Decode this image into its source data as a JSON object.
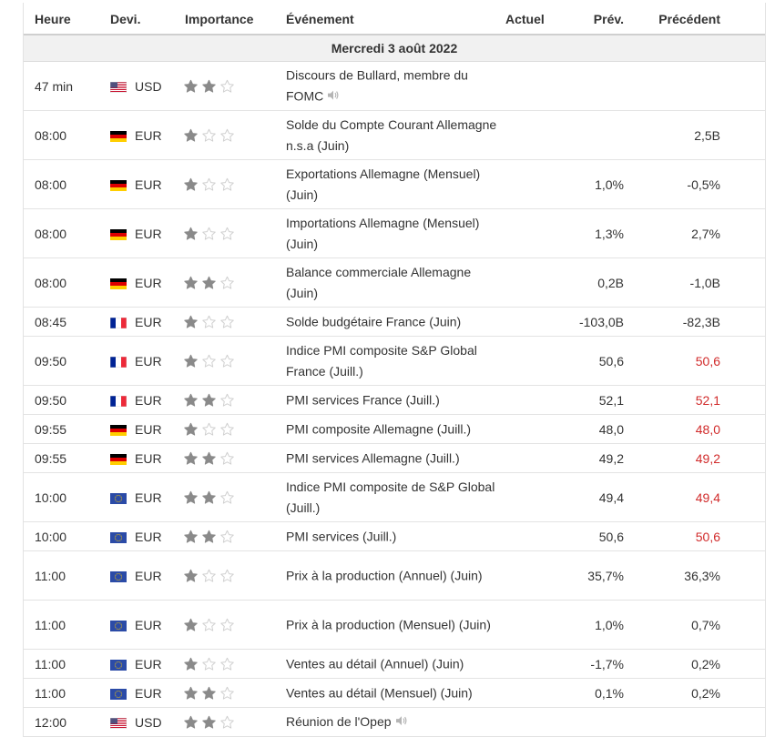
{
  "header": {
    "time": "Heure",
    "currency": "Devi.",
    "importance": "Importance",
    "event": "Événement",
    "actual": "Actuel",
    "forecast": "Prév.",
    "previous": "Précédent"
  },
  "date_label": "Mercredi 3 août 2022",
  "colors": {
    "negative": "#d12b2b",
    "star_filled": "#8a8a8a",
    "star_empty": "#cfcfcf"
  },
  "rows": [
    {
      "time": "47 min",
      "flag": "us",
      "currency": "USD",
      "importance": 2,
      "event": "Discours de Bullard, membre du FOMC",
      "speaker_icon": true,
      "actual": "",
      "forecast": "",
      "previous": "",
      "previous_red": false,
      "lines": 2
    },
    {
      "time": "08:00",
      "flag": "de",
      "currency": "EUR",
      "importance": 1,
      "event": "Solde du Compte Courant Allemagne n.s.a (Juin)",
      "speaker_icon": false,
      "actual": "",
      "forecast": "",
      "previous": "2,5B",
      "previous_red": false,
      "lines": 2
    },
    {
      "time": "08:00",
      "flag": "de",
      "currency": "EUR",
      "importance": 1,
      "event": "Exportations Allemagne (Mensuel) (Juin)",
      "speaker_icon": false,
      "actual": "",
      "forecast": "1,0%",
      "previous": "-0,5%",
      "previous_red": false,
      "lines": 2
    },
    {
      "time": "08:00",
      "flag": "de",
      "currency": "EUR",
      "importance": 1,
      "event": "Importations Allemagne (Mensuel) (Juin)",
      "speaker_icon": false,
      "actual": "",
      "forecast": "1,3%",
      "previous": "2,7%",
      "previous_red": false,
      "lines": 2
    },
    {
      "time": "08:00",
      "flag": "de",
      "currency": "EUR",
      "importance": 2,
      "event": "Balance commerciale Allemagne (Juin)",
      "speaker_icon": false,
      "actual": "",
      "forecast": "0,2B",
      "previous": "-1,0B",
      "previous_red": false,
      "lines": 2
    },
    {
      "time": "08:45",
      "flag": "fr",
      "currency": "EUR",
      "importance": 1,
      "event": "Solde budgétaire France (Juin)",
      "speaker_icon": false,
      "actual": "",
      "forecast": "-103,0B",
      "previous": "-82,3B",
      "previous_red": false,
      "lines": 1
    },
    {
      "time": "09:50",
      "flag": "fr",
      "currency": "EUR",
      "importance": 1,
      "event": "Indice PMI composite S&P Global France (Juill.)",
      "speaker_icon": false,
      "actual": "",
      "forecast": "50,6",
      "previous": "50,6",
      "previous_red": true,
      "lines": 2
    },
    {
      "time": "09:50",
      "flag": "fr",
      "currency": "EUR",
      "importance": 2,
      "event": "PMI services France (Juill.)",
      "speaker_icon": false,
      "actual": "",
      "forecast": "52,1",
      "previous": "52,1",
      "previous_red": true,
      "lines": 1
    },
    {
      "time": "09:55",
      "flag": "de",
      "currency": "EUR",
      "importance": 1,
      "event": "PMI composite Allemagne (Juill.)",
      "speaker_icon": false,
      "actual": "",
      "forecast": "48,0",
      "previous": "48,0",
      "previous_red": true,
      "lines": 1
    },
    {
      "time": "09:55",
      "flag": "de",
      "currency": "EUR",
      "importance": 2,
      "event": "PMI services Allemagne (Juill.)",
      "speaker_icon": false,
      "actual": "",
      "forecast": "49,2",
      "previous": "49,2",
      "previous_red": true,
      "lines": 1
    },
    {
      "time": "10:00",
      "flag": "eu",
      "currency": "EUR",
      "importance": 2,
      "event": "Indice PMI composite de S&P Global (Juill.)",
      "speaker_icon": false,
      "actual": "",
      "forecast": "49,4",
      "previous": "49,4",
      "previous_red": true,
      "lines": 2
    },
    {
      "time": "10:00",
      "flag": "eu",
      "currency": "EUR",
      "importance": 2,
      "event": "PMI services (Juill.)",
      "speaker_icon": false,
      "actual": "",
      "forecast": "50,6",
      "previous": "50,6",
      "previous_red": true,
      "lines": 1
    },
    {
      "time": "11:00",
      "flag": "eu",
      "currency": "EUR",
      "importance": 1,
      "event": "Prix à la production (Annuel) (Juin)",
      "speaker_icon": false,
      "actual": "",
      "forecast": "35,7%",
      "previous": "36,3%",
      "previous_red": false,
      "lines": 2
    },
    {
      "time": "11:00",
      "flag": "eu",
      "currency": "EUR",
      "importance": 1,
      "event": "Prix à la production (Mensuel) (Juin)",
      "speaker_icon": false,
      "actual": "",
      "forecast": "1,0%",
      "previous": "0,7%",
      "previous_red": false,
      "lines": 2
    },
    {
      "time": "11:00",
      "flag": "eu",
      "currency": "EUR",
      "importance": 1,
      "event": "Ventes au détail (Annuel) (Juin)",
      "speaker_icon": false,
      "actual": "",
      "forecast": "-1,7%",
      "previous": "0,2%",
      "previous_red": false,
      "lines": 1
    },
    {
      "time": "11:00",
      "flag": "eu",
      "currency": "EUR",
      "importance": 2,
      "event": "Ventes au détail (Mensuel) (Juin)",
      "speaker_icon": false,
      "actual": "",
      "forecast": "0,1%",
      "previous": "0,2%",
      "previous_red": false,
      "lines": 1
    },
    {
      "time": "12:00",
      "flag": "us",
      "currency": "USD",
      "importance": 2,
      "event": "Réunion de l'Opep",
      "speaker_icon": true,
      "actual": "",
      "forecast": "",
      "previous": "",
      "previous_red": false,
      "lines": 1
    }
  ]
}
